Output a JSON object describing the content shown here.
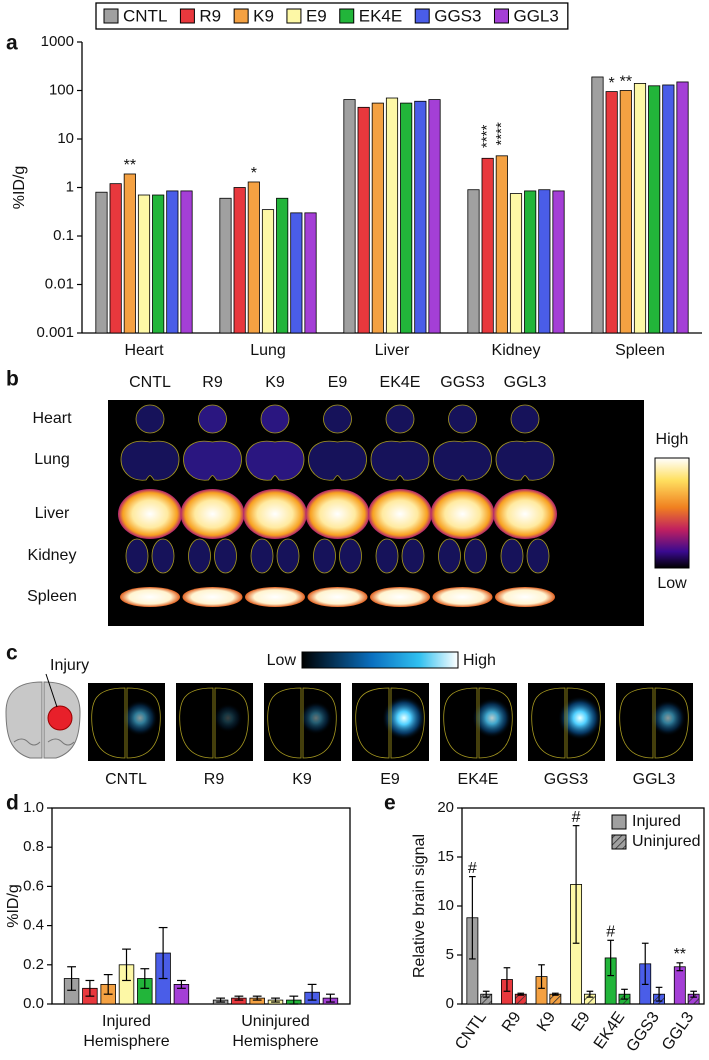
{
  "chart_data": [
    {
      "panel": "a",
      "type": "bar",
      "log_scale": true,
      "y_label": "%ID/g",
      "categories": [
        "Heart",
        "Lung",
        "Liver",
        "Kidney",
        "Spleen"
      ],
      "ylim": [
        0.001,
        1000
      ],
      "yticks": [
        0.001,
        0.01,
        0.1,
        1,
        10,
        100,
        1000
      ],
      "series": [
        {
          "name": "CNTL",
          "color": "#a0a0a0",
          "values": [
            0.8,
            0.6,
            65,
            0.9,
            190
          ]
        },
        {
          "name": "R9",
          "color": "#e8383d",
          "values": [
            1.2,
            1.0,
            45,
            4,
            95
          ],
          "annotations": [
            null,
            null,
            null,
            "****",
            "*"
          ]
        },
        {
          "name": "K9",
          "color": "#f4a142",
          "values": [
            1.9,
            1.3,
            55,
            4.5,
            100
          ],
          "annotations": [
            "**",
            "*",
            null,
            "****",
            "**"
          ]
        },
        {
          "name": "E9",
          "color": "#fdf8a6",
          "values": [
            0.7,
            0.35,
            70,
            0.75,
            140
          ]
        },
        {
          "name": "EK4E",
          "color": "#22b53a",
          "values": [
            0.7,
            0.6,
            55,
            0.85,
            125
          ]
        },
        {
          "name": "GGS3",
          "color": "#4a5de8",
          "values": [
            0.85,
            0.3,
            60,
            0.9,
            130
          ]
        },
        {
          "name": "GGL3",
          "color": "#a43fd6",
          "values": [
            0.85,
            0.3,
            65,
            0.85,
            150
          ]
        }
      ]
    },
    {
      "panel": "d",
      "type": "bar",
      "y_label": "%ID/g",
      "categories": [
        "Injured Hemisphere",
        "Uninjured Hemisphere"
      ],
      "ylim": [
        0,
        1
      ],
      "yticks": [
        {
          "value": 0,
          "label": "0.0"
        },
        0.2,
        0.4,
        0.6,
        0.8,
        {
          "value": 1,
          "label": "1.0"
        }
      ],
      "series": [
        {
          "color": "#a0a0a0",
          "values": [
            0.13,
            0.02
          ],
          "errors": [
            0.06,
            0.01
          ]
        },
        {
          "color": "#e8383d",
          "values": [
            0.08,
            0.03
          ],
          "errors": [
            0.04,
            0.01
          ]
        },
        {
          "color": "#f4a142",
          "values": [
            0.1,
            0.03
          ],
          "errors": [
            0.05,
            0.01
          ]
        },
        {
          "color": "#fdf8a6",
          "values": [
            0.2,
            0.02
          ],
          "errors": [
            0.08,
            0.01
          ]
        },
        {
          "color": "#22b53a",
          "values": [
            0.13,
            0.02
          ],
          "errors": [
            0.05,
            0.02
          ]
        },
        {
          "color": "#4a5de8",
          "values": [
            0.26,
            0.06
          ],
          "errors": [
            0.13,
            0.04
          ]
        },
        {
          "color": "#a43fd6",
          "values": [
            0.1,
            0.03
          ],
          "errors": [
            0.02,
            0.02
          ]
        }
      ]
    },
    {
      "panel": "e",
      "type": "bar",
      "y_label": "Relative brain signal",
      "legend": "upper right",
      "categories": [
        "CNTL",
        "R9",
        "K9",
        "E9",
        "EK4E",
        "GGS3",
        "GGL3"
      ],
      "category_colors": [
        "#a0a0a0",
        "#e8383d",
        "#f4a142",
        "#fdf8a6",
        "#22b53a",
        "#4a5de8",
        "#a43fd6"
      ],
      "ylim": [
        0,
        20
      ],
      "yticks": [
        0,
        5,
        10,
        15,
        20
      ],
      "series": [
        {
          "name": "Injured",
          "color": "#a0a0a0",
          "values": [
            8.8,
            2.5,
            2.8,
            12.2,
            4.7,
            4.1,
            3.8
          ],
          "errors": [
            4.2,
            1.2,
            1.2,
            6,
            1.8,
            2.1,
            0.4
          ],
          "annotations": [
            "#",
            null,
            null,
            "#",
            "#",
            null,
            "**"
          ]
        },
        {
          "name": "Uninjured",
          "color": "#a0a0a0",
          "hatch": true,
          "values": [
            1,
            1,
            1,
            1,
            1,
            1,
            1
          ],
          "errors": [
            0.3,
            0.1,
            0.1,
            0.3,
            0.5,
            0.7,
            0.3
          ]
        }
      ]
    }
  ],
  "panel_b": {
    "panel": "b",
    "columns": [
      "CNTL",
      "R9",
      "K9",
      "E9",
      "EK4E",
      "GGS3",
      "GGL3"
    ],
    "rows": [
      "Heart",
      "Lung",
      "Liver",
      "Kidney",
      "Spleen"
    ],
    "scale_high": "High",
    "scale_low": "Low"
  },
  "panel_c": {
    "panel": "c",
    "marker_label": "Injury",
    "scale_low": "Low",
    "scale_high": "High",
    "columns": [
      "CNTL",
      "R9",
      "K9",
      "E9",
      "EK4E",
      "GGS3",
      "GGL3"
    ]
  }
}
